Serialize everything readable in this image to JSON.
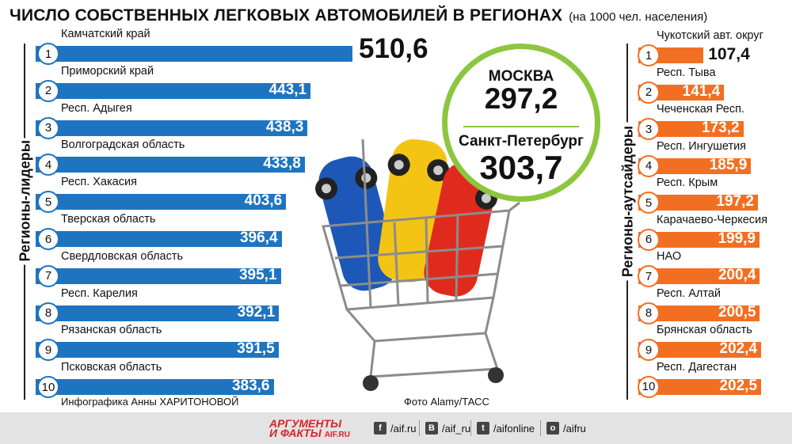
{
  "title": "ЧИСЛО СОБСТВЕННЫХ ЛЕГКОВЫХ АВТОМОБИЛЕЙ В РЕГИОНАХ",
  "subtitle": "(на 1000 чел. населения)",
  "left_label": "Регионы-лидеры",
  "right_label": "Регионы-аутсайдеры",
  "colors": {
    "leaders": "#1f74c0",
    "outsiders": "#f26f22",
    "circle": "#8cc63f"
  },
  "highlight": {
    "city1": "МОСКВА",
    "value1": "297,2",
    "city2": "Санкт-Петербург",
    "value2": "303,7"
  },
  "credits": {
    "author": "Инфографика Анны ХАРИТОНОВОЙ",
    "photo": "Фото Alamy/ТАСС"
  },
  "footer": {
    "logo_line1": "АРГУМЕНТЫ",
    "logo_line2": "И ФАКТЫ",
    "logo_site": "AIF.RU",
    "links": [
      {
        "icon": "facebook-icon",
        "glyph": "f",
        "text": "/aif.ru"
      },
      {
        "icon": "vk-icon",
        "glyph": "В",
        "text": "/aif_ru"
      },
      {
        "icon": "twitter-icon",
        "glyph": "t",
        "text": "/aifonline"
      },
      {
        "icon": "odnoklassniki-icon",
        "glyph": "о",
        "text": "/aifru"
      }
    ]
  },
  "chart_data": [
    {
      "type": "bar",
      "title": "Регионы-лидеры",
      "categories": [
        "Камчатский край",
        "Приморский край",
        "Респ. Адыгея",
        "Волгоградская область",
        "Респ. Хакасия",
        "Тверская область",
        "Свердловская область",
        "Респ. Карелия",
        "Рязанская область",
        "Псковская область"
      ],
      "ranks": [
        "1",
        "2",
        "3",
        "4",
        "5",
        "6",
        "7",
        "8",
        "9",
        "10"
      ],
      "values": [
        510.6,
        443.1,
        438.3,
        433.8,
        403.6,
        396.4,
        395.1,
        392.1,
        391.5,
        383.6
      ],
      "labels": [
        "510,6",
        "443,1",
        "438,3",
        "433,8",
        "403,6",
        "396,4",
        "395,1",
        "392,1",
        "391,5",
        "383,6"
      ]
    },
    {
      "type": "bar",
      "title": "Регионы-аутсайдеры",
      "categories": [
        "Чукотский авт. округ",
        "Респ. Тыва",
        "Чеченская Респ.",
        "Респ. Ингушетия",
        "Респ. Крым",
        "Карачаево-Черкесия",
        "НАО",
        "Респ. Алтай",
        "Брянская область",
        "Респ. Дагестан"
      ],
      "ranks": [
        "1",
        "2",
        "3",
        "4",
        "5",
        "6",
        "7",
        "8",
        "9",
        "10"
      ],
      "values": [
        107.4,
        141.4,
        173.2,
        185.9,
        197.2,
        199.9,
        200.4,
        200.5,
        202.4,
        202.5
      ],
      "labels": [
        "107,4",
        "141,4",
        "173,2",
        "185,9",
        "197,2",
        "199,9",
        "200,4",
        "200,5",
        "202,4",
        "202,5"
      ]
    }
  ]
}
